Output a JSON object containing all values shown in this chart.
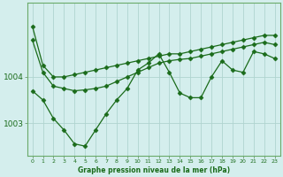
{
  "title": "Graphe pression niveau de la mer (hPa)",
  "bg_color": "#d4eeed",
  "grid_color": "#b0d4d0",
  "line_color": "#1a6b1a",
  "xlim": [
    -0.5,
    23.5
  ],
  "ylim": [
    1002.3,
    1005.6
  ],
  "yticks": [
    1003,
    1004
  ],
  "ytick_labels": [
    "1003",
    "1004"
  ],
  "xticks": [
    0,
    1,
    2,
    3,
    4,
    5,
    6,
    7,
    8,
    9,
    10,
    11,
    12,
    13,
    14,
    15,
    16,
    17,
    18,
    19,
    20,
    21,
    22,
    23
  ],
  "series1_x": [
    0,
    1,
    2,
    3,
    4,
    5,
    6,
    7,
    8,
    9,
    10,
    11,
    12,
    13,
    14,
    15,
    16,
    17,
    18,
    19,
    20,
    21,
    22,
    23
  ],
  "series1_y": [
    1005.1,
    1004.25,
    1004.0,
    1004.0,
    1004.05,
    1004.1,
    1004.15,
    1004.2,
    1004.25,
    1004.3,
    1004.35,
    1004.4,
    1004.45,
    1004.5,
    1004.5,
    1004.55,
    1004.6,
    1004.65,
    1004.7,
    1004.75,
    1004.8,
    1004.85,
    1004.9,
    1004.9
  ],
  "series2_x": [
    0,
    1,
    2,
    3,
    4,
    5,
    6,
    7,
    8,
    9,
    10,
    11,
    12,
    13,
    14,
    15,
    16,
    17,
    18,
    19,
    20,
    21,
    22,
    23
  ],
  "series2_y": [
    1004.8,
    1004.1,
    1003.8,
    1003.75,
    1003.7,
    1003.72,
    1003.75,
    1003.8,
    1003.9,
    1004.0,
    1004.1,
    1004.2,
    1004.3,
    1004.35,
    1004.38,
    1004.4,
    1004.45,
    1004.5,
    1004.55,
    1004.6,
    1004.65,
    1004.7,
    1004.75,
    1004.7
  ],
  "series3_x": [
    0,
    1,
    2,
    3,
    4,
    5,
    6,
    7,
    8,
    9,
    10,
    11,
    12,
    13,
    14,
    15,
    16,
    17,
    18,
    19,
    20,
    21,
    22,
    23
  ],
  "series3_y": [
    1003.7,
    1003.5,
    1003.1,
    1002.85,
    1002.55,
    1002.5,
    1002.85,
    1003.2,
    1003.5,
    1003.75,
    1004.15,
    1004.3,
    1004.5,
    1004.1,
    1003.65,
    1003.55,
    1003.55,
    1004.0,
    1004.35,
    1004.15,
    1004.1,
    1004.55,
    1004.5,
    1004.4
  ]
}
